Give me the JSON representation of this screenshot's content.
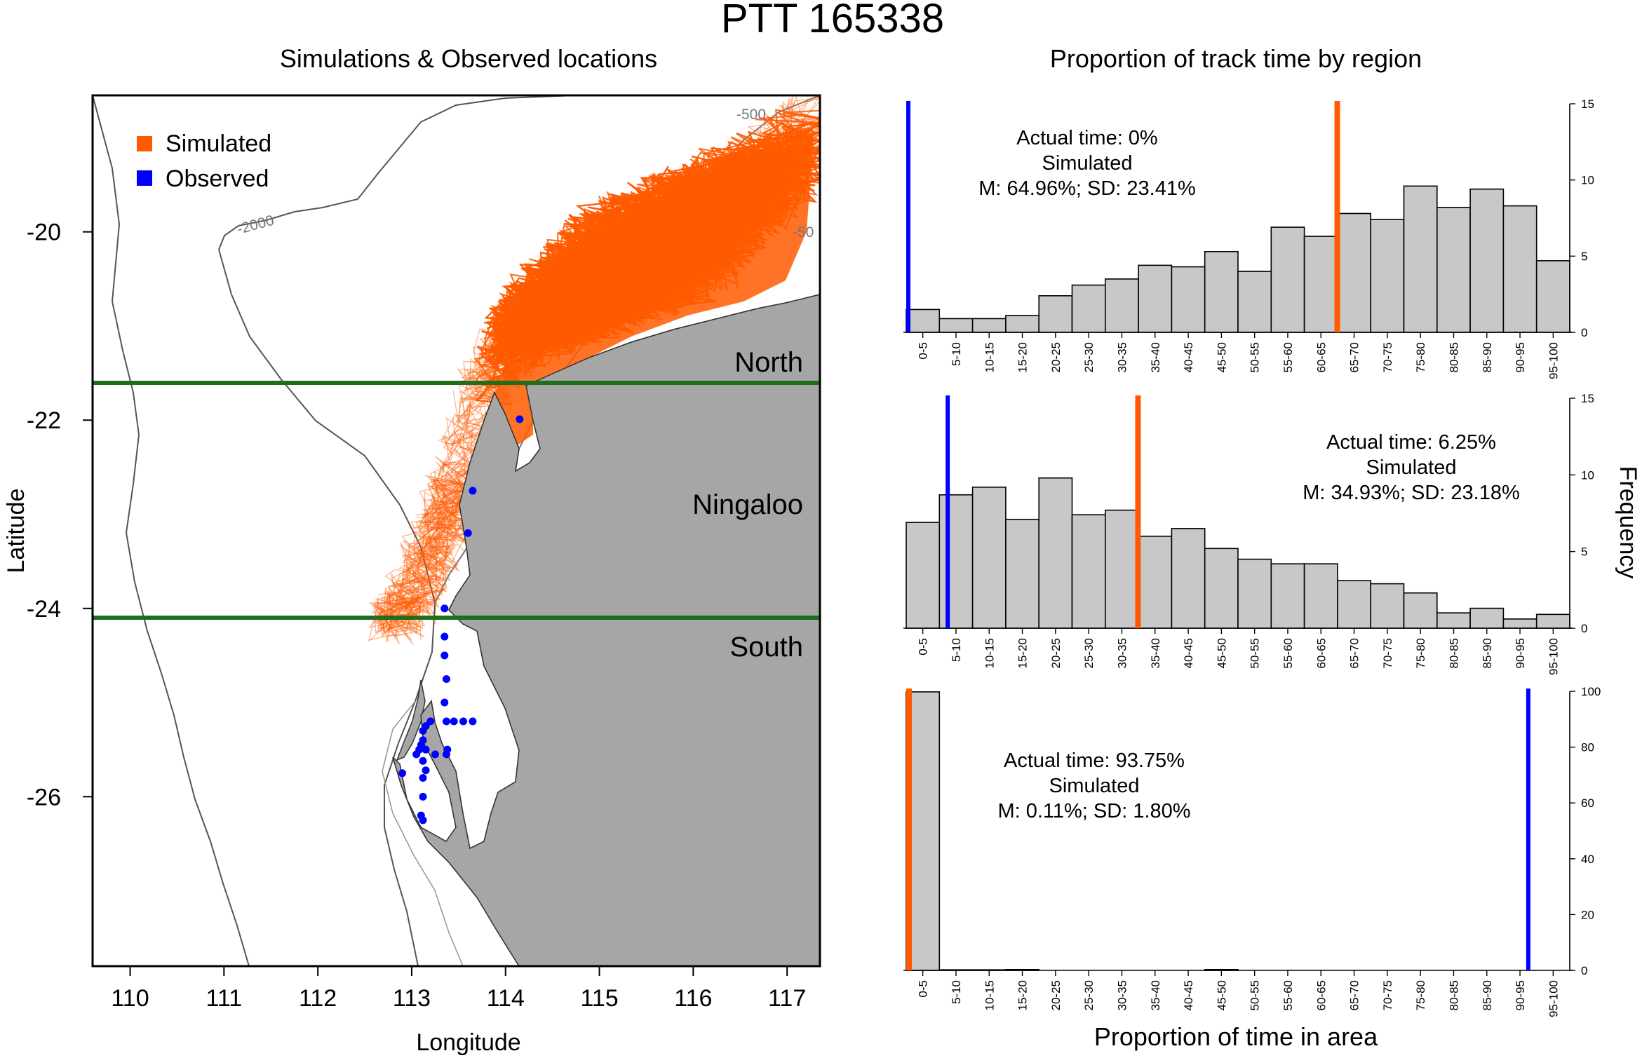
{
  "figure": {
    "title": "PTT 165338",
    "map_title": "Simulations & Observed locations",
    "hist_title": "Proportion of track time by region",
    "x_title": "Proportion of time in area",
    "y_title": "Frequency"
  },
  "colors": {
    "simulated": "#ff5a00",
    "observed": "#0000ff",
    "land": "#a6a6a6",
    "region_line": "#1e6e1e",
    "bar_fill": "#c8c8c8",
    "contour": "#555555"
  },
  "chart_data": [
    {
      "type": "map",
      "title": "Simulations & Observed locations",
      "xlabel": "Longitude",
      "ylabel": "Latitude",
      "xlim": [
        109.6,
        117.35
      ],
      "ylim": [
        -27.8,
        -18.55
      ],
      "x_ticks": [
        "110",
        "111",
        "112",
        "113",
        "114",
        "115",
        "116",
        "117"
      ],
      "y_ticks": [
        "-20",
        "-22",
        "-24",
        "-26"
      ],
      "legend": [
        {
          "label": "Simulated",
          "color": "#ff5a00"
        },
        {
          "label": "Observed",
          "color": "#0000ff"
        }
      ],
      "region_lines_lat": [
        -21.65,
        -24.15
      ],
      "region_labels": [
        {
          "text": "North",
          "lon": 116.65,
          "lat": -21.45
        },
        {
          "text": "Ningaloo",
          "lon": 116.25,
          "lat": -22.98
        },
        {
          "text": "South",
          "lon": 116.55,
          "lat": -24.5
        }
      ],
      "contour_labels": [
        {
          "text": "-500",
          "lon": 115.5,
          "lat": -18.8
        },
        {
          "text": "-2000",
          "lon": 111.4,
          "lat": -20.0
        },
        {
          "text": "-50",
          "lon": 116.9,
          "lat": -20.05
        }
      ],
      "observed_points": [
        [
          114.15,
          -21.99
        ],
        [
          113.65,
          -22.75
        ],
        [
          113.6,
          -23.2
        ],
        [
          113.35,
          -24.0
        ],
        [
          113.35,
          -24.3
        ],
        [
          113.35,
          -24.5
        ],
        [
          113.37,
          -24.75
        ],
        [
          113.35,
          -25.0
        ],
        [
          113.37,
          -25.2
        ],
        [
          113.45,
          -25.2
        ],
        [
          113.55,
          -25.2
        ],
        [
          113.65,
          -25.2
        ],
        [
          113.2,
          -25.2
        ],
        [
          113.15,
          -25.25
        ],
        [
          113.12,
          -25.3
        ],
        [
          113.12,
          -25.4
        ],
        [
          113.1,
          -25.45
        ],
        [
          113.15,
          -25.5
        ],
        [
          113.08,
          -25.5
        ],
        [
          113.05,
          -25.55
        ],
        [
          113.25,
          -25.55
        ],
        [
          113.37,
          -25.55
        ],
        [
          113.38,
          -25.5
        ],
        [
          113.12,
          -25.62
        ],
        [
          113.15,
          -25.72
        ],
        [
          113.12,
          -25.8
        ],
        [
          112.9,
          -25.75
        ],
        [
          113.12,
          -26.0
        ],
        [
          113.1,
          -26.2
        ],
        [
          113.12,
          -26.25
        ]
      ]
    },
    {
      "type": "bar",
      "region": "North",
      "categories": [
        "0-5",
        "5-10",
        "10-15",
        "15-20",
        "20-25",
        "25-30",
        "30-35",
        "35-40",
        "40-45",
        "45-50",
        "50-55",
        "55-60",
        "60-65",
        "65-70",
        "70-75",
        "75-80",
        "80-85",
        "85-90",
        "90-95",
        "95-100"
      ],
      "values": [
        1.5,
        0.9,
        0.9,
        1.1,
        2.4,
        3.1,
        3.5,
        4.4,
        4.3,
        5.3,
        4.0,
        6.9,
        6.3,
        7.8,
        7.4,
        9.6,
        8.2,
        9.4,
        8.3,
        4.7
      ],
      "ylim": [
        0,
        15
      ],
      "y_ticks": [
        0,
        5,
        10,
        15
      ],
      "actual": 0.0,
      "sim_mean": 64.96,
      "annotation": [
        "Actual time: 0%",
        "Simulated",
        "M: 64.96%; SD: 23.41%"
      ]
    },
    {
      "type": "bar",
      "region": "Ningaloo",
      "categories": [
        "0-5",
        "5-10",
        "10-15",
        "15-20",
        "20-25",
        "25-30",
        "30-35",
        "35-40",
        "40-45",
        "45-50",
        "50-55",
        "55-60",
        "60-65",
        "65-70",
        "70-75",
        "75-80",
        "80-85",
        "85-90",
        "90-95",
        "95-100"
      ],
      "values": [
        6.9,
        8.7,
        9.2,
        7.1,
        9.8,
        7.4,
        7.7,
        6.0,
        6.5,
        5.2,
        4.5,
        4.2,
        4.2,
        3.1,
        2.9,
        2.3,
        1.0,
        1.3,
        0.6,
        0.9
      ],
      "ylim": [
        0,
        15
      ],
      "y_ticks": [
        0,
        5,
        10,
        15
      ],
      "actual": 6.25,
      "sim_mean": 34.93,
      "annotation": [
        "Actual time: 6.25%",
        "Simulated",
        "M: 34.93%; SD: 23.18%"
      ]
    },
    {
      "type": "bar",
      "region": "South",
      "categories": [
        "0-5",
        "5-10",
        "10-15",
        "15-20",
        "20-25",
        "25-30",
        "30-35",
        "35-40",
        "40-45",
        "45-50",
        "50-55",
        "55-60",
        "60-65",
        "65-70",
        "70-75",
        "75-80",
        "80-85",
        "85-90",
        "90-95",
        "95-100"
      ],
      "values": [
        99.8,
        0.2,
        0.2,
        0.3,
        0,
        0,
        0,
        0,
        0,
        0.3,
        0,
        0,
        0,
        0,
        0,
        0,
        0,
        0,
        0,
        0
      ],
      "ylim": [
        0,
        100
      ],
      "y_ticks": [
        0,
        20,
        40,
        60,
        80,
        100
      ],
      "actual": 93.75,
      "sim_mean": 0.11,
      "annotation": [
        "Actual time: 93.75%",
        "Simulated",
        "M: 0.11%; SD: 1.80%"
      ]
    }
  ]
}
